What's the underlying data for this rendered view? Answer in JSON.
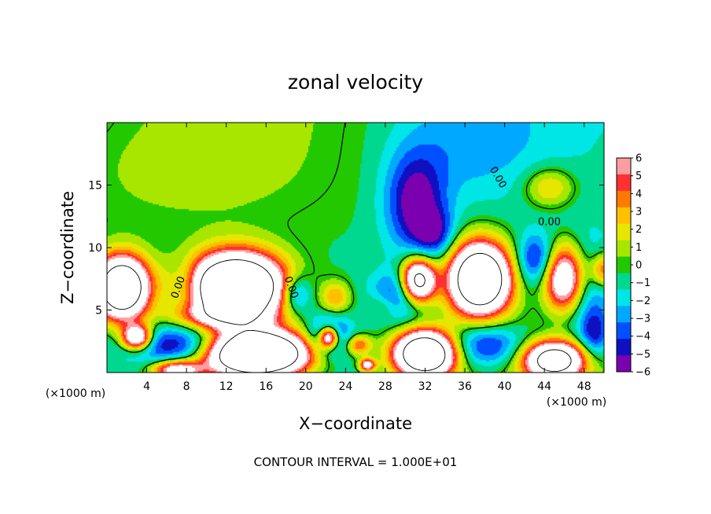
{
  "chart_data": {
    "type": "heatmap",
    "title": "zonal velocity",
    "xlabel": "X−coordinate",
    "ylabel": "Z−coordinate",
    "x_unit_label": "(×1000 m)",
    "x_unit_label_right": "(×1000 m)",
    "xlim": [
      0,
      50
    ],
    "ylim": [
      0,
      20
    ],
    "x_ticks": [
      4,
      8,
      12,
      16,
      20,
      24,
      28,
      32,
      36,
      40,
      44,
      48
    ],
    "y_ticks": [
      5,
      10,
      15
    ],
    "contour_interval_text": "CONTOUR INTERVAL = 1.000E+01",
    "contour_label": "0.00",
    "colorbar": {
      "ticks": [
        6,
        5,
        4,
        3,
        2,
        1,
        0,
        -1,
        -2,
        -3,
        -4,
        -5,
        -6
      ],
      "tick_labels": [
        "6",
        "5",
        "4",
        "3",
        "2",
        "1",
        "0",
        "−1",
        "−2",
        "−3",
        "−4",
        "−5",
        "−6"
      ],
      "colors": [
        "#ff9ea0",
        "#ff3030",
        "#ff7a00",
        "#ffc000",
        "#e6e600",
        "#a8e600",
        "#22c800",
        "#00d890",
        "#00e5e5",
        "#00a8ff",
        "#0050ff",
        "#1010c0",
        "#7a00b0"
      ],
      "over_color": "#ffffff",
      "range": [
        -6,
        6
      ]
    },
    "features": [
      {
        "x": 6,
        "y": 16,
        "value": 1.1,
        "sx": 14,
        "sy": 5
      },
      {
        "x": 36,
        "y": 18,
        "value": -1.6,
        "sx": 7,
        "sy": 4
      },
      {
        "x": 31,
        "y": 13.5,
        "value": -5.2,
        "sx": 3,
        "sy": 4
      },
      {
        "x": 33,
        "y": 11,
        "value": -3.5,
        "sx": 2,
        "sy": 2
      },
      {
        "x": 44.5,
        "y": 14.8,
        "value": 3.6,
        "sx": 2.5,
        "sy": 1.6
      },
      {
        "x": 1.5,
        "y": 6.8,
        "value": 18,
        "sx": 2.6,
        "sy": 2.4
      },
      {
        "x": 13,
        "y": 6.8,
        "value": 22,
        "sx": 4.6,
        "sy": 2.6
      },
      {
        "x": 31.3,
        "y": 7.3,
        "value": 14,
        "sx": 1.7,
        "sy": 1.8
      },
      {
        "x": 37.5,
        "y": 7.5,
        "value": 18,
        "sx": 3,
        "sy": 2.8
      },
      {
        "x": 46,
        "y": 7.5,
        "value": 14,
        "sx": 2.2,
        "sy": 2.8
      },
      {
        "x": 50,
        "y": 8.2,
        "value": 6,
        "sx": 1.4,
        "sy": 1.4
      },
      {
        "x": 23,
        "y": 6,
        "value": 4,
        "sx": 1.5,
        "sy": 1.3
      },
      {
        "x": 28,
        "y": 5.3,
        "value": 2.5,
        "sx": 2,
        "sy": 1.2
      },
      {
        "x": 15,
        "y": 1.5,
        "value": 24,
        "sx": 5,
        "sy": 1.8
      },
      {
        "x": 32,
        "y": 1.5,
        "value": 18,
        "sx": 3,
        "sy": 1.8
      },
      {
        "x": 45,
        "y": 1,
        "value": 14,
        "sx": 3,
        "sy": 1.5
      },
      {
        "x": 3,
        "y": 2.8,
        "value": 11,
        "sx": 1.5,
        "sy": 1
      },
      {
        "x": 7,
        "y": 0.2,
        "value": 9,
        "sx": 2.5,
        "sy": 0.8
      },
      {
        "x": 26.2,
        "y": 0.6,
        "value": 8,
        "sx": 0.8,
        "sy": 0.5
      },
      {
        "x": 22.3,
        "y": 2.8,
        "value": 12,
        "sx": 1,
        "sy": 0.9
      },
      {
        "x": 25.3,
        "y": 2.2,
        "value": 5,
        "sx": 1.3,
        "sy": 0.8
      },
      {
        "x": 22.3,
        "y": 2.8,
        "value": -6,
        "sx": 2,
        "sy": 1.6
      },
      {
        "x": 19,
        "y": 6.3,
        "value": -4.5,
        "sx": 1.5,
        "sy": 1.5
      },
      {
        "x": 8,
        "y": 7,
        "value": -2.5,
        "sx": 1.5,
        "sy": 2
      },
      {
        "x": 29.5,
        "y": 6,
        "value": -5,
        "sx": 2.8,
        "sy": 2
      },
      {
        "x": 43.2,
        "y": 9,
        "value": -4.5,
        "sx": 2,
        "sy": 2
      },
      {
        "x": 47,
        "y": 7,
        "value": -5.5,
        "sx": 3.5,
        "sy": 3.8
      },
      {
        "x": 38,
        "y": 2.2,
        "value": -5,
        "sx": 4,
        "sy": 1.8
      },
      {
        "x": 8,
        "y": 2.2,
        "value": -5,
        "sx": 6,
        "sy": 1.5
      },
      {
        "x": 49,
        "y": 3,
        "value": -4,
        "sx": 1.5,
        "sy": 2
      },
      {
        "x": 11,
        "y": 4.5,
        "value": 4,
        "sx": 5,
        "sy": 1
      }
    ]
  }
}
